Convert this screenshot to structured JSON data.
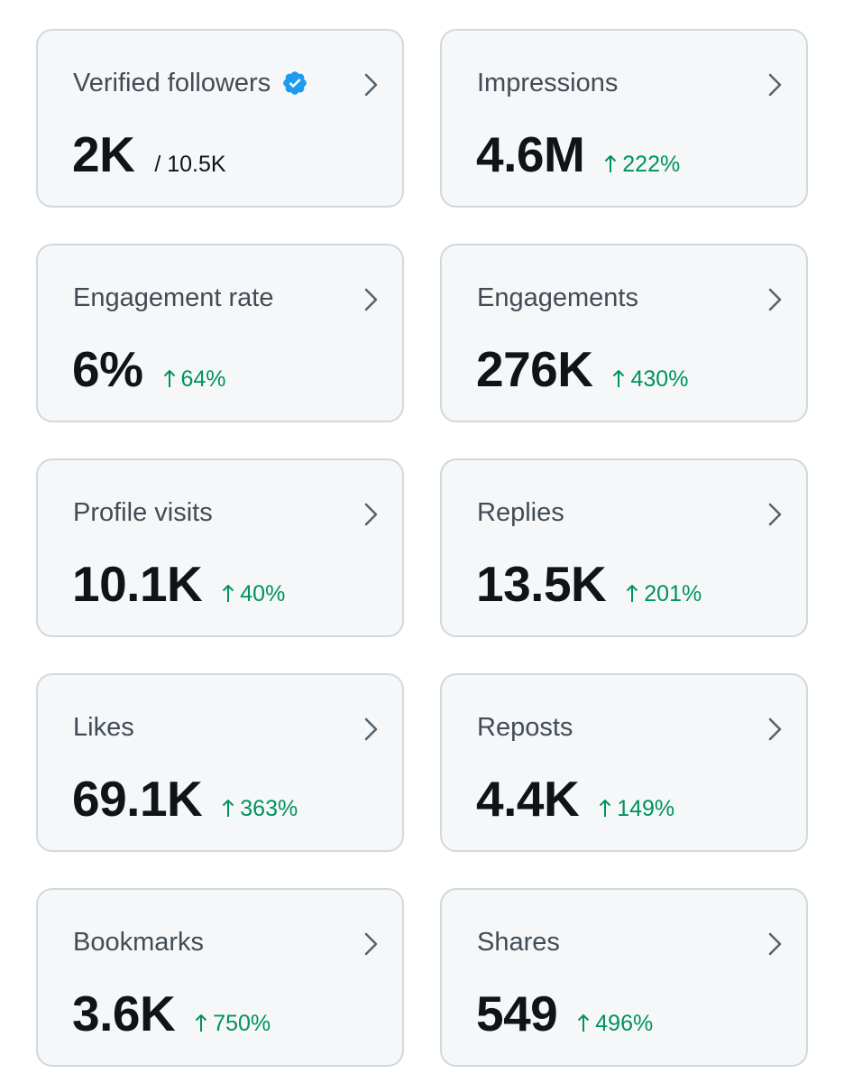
{
  "colors": {
    "card_bg": "#f6f7f8",
    "card_border": "#cfd9de",
    "label": "#414c56",
    "value": "#0f1419",
    "positive": "#00935a",
    "verified": "#1d9bf0"
  },
  "cards": [
    {
      "label": "Verified followers",
      "value": "2K",
      "secondary": "/ 10.5K",
      "verified_icon": "verified-badge-icon",
      "nav_icon": "chevron-right-icon"
    },
    {
      "label": "Impressions",
      "value": "4.6M",
      "change": "222%",
      "change_icon": "arrow-up-icon",
      "nav_icon": "chevron-right-icon"
    },
    {
      "label": "Engagement rate",
      "value": "6%",
      "change": "64%",
      "change_icon": "arrow-up-icon",
      "nav_icon": "chevron-right-icon"
    },
    {
      "label": "Engagements",
      "value": "276K",
      "change": "430%",
      "change_icon": "arrow-up-icon",
      "nav_icon": "chevron-right-icon"
    },
    {
      "label": "Profile visits",
      "value": "10.1K",
      "change": "40%",
      "change_icon": "arrow-up-icon",
      "nav_icon": "chevron-right-icon"
    },
    {
      "label": "Replies",
      "value": "13.5K",
      "change": "201%",
      "change_icon": "arrow-up-icon",
      "nav_icon": "chevron-right-icon"
    },
    {
      "label": "Likes",
      "value": "69.1K",
      "change": "363%",
      "change_icon": "arrow-up-icon",
      "nav_icon": "chevron-right-icon"
    },
    {
      "label": "Reposts",
      "value": "4.4K",
      "change": "149%",
      "change_icon": "arrow-up-icon",
      "nav_icon": "chevron-right-icon"
    },
    {
      "label": "Bookmarks",
      "value": "3.6K",
      "change": "750%",
      "change_icon": "arrow-up-icon",
      "nav_icon": "chevron-right-icon"
    },
    {
      "label": "Shares",
      "value": "549",
      "change": "496%",
      "change_icon": "arrow-up-icon",
      "nav_icon": "chevron-right-icon"
    }
  ]
}
